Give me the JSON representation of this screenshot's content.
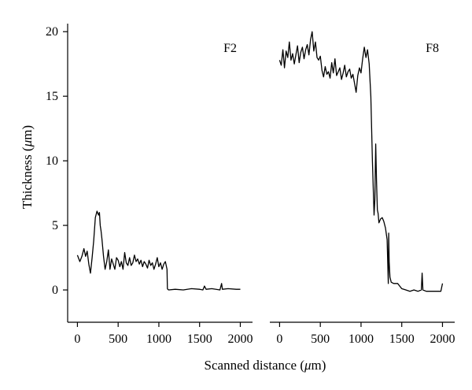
{
  "chart_data": {
    "type": "line",
    "ylabel": "Thickness (μm)",
    "xlabel": "Scanned distance (μm)",
    "ylim": [
      -2.5,
      20.5
    ],
    "yticks": [
      0,
      5,
      10,
      15,
      20
    ],
    "grid": false,
    "panels": [
      {
        "label": "F2",
        "xlim": [
          -120,
          2150
        ],
        "xticks": [
          0,
          500,
          1000,
          1500,
          2000
        ],
        "x": [
          0,
          30,
          55,
          80,
          100,
          120,
          140,
          160,
          180,
          200,
          220,
          240,
          260,
          270,
          280,
          290,
          300,
          320,
          340,
          360,
          380,
          400,
          420,
          440,
          460,
          480,
          500,
          520,
          540,
          560,
          580,
          600,
          620,
          640,
          660,
          680,
          700,
          720,
          740,
          760,
          780,
          800,
          820,
          840,
          860,
          880,
          900,
          920,
          940,
          960,
          980,
          1000,
          1020,
          1040,
          1060,
          1080,
          1100,
          1105,
          1110,
          1120,
          1200,
          1300,
          1400,
          1500,
          1540,
          1560,
          1580,
          1650,
          1750,
          1770,
          1780,
          1850,
          1950,
          2000
        ],
        "y": [
          2.7,
          2.2,
          2.6,
          3.2,
          2.6,
          3.0,
          2.0,
          1.3,
          2.5,
          3.8,
          5.6,
          6.1,
          5.8,
          6.0,
          5.0,
          4.6,
          4.0,
          2.6,
          1.6,
          2.2,
          3.1,
          1.6,
          2.4,
          2.0,
          1.6,
          2.5,
          2.3,
          1.8,
          2.2,
          1.6,
          2.9,
          2.1,
          1.9,
          2.5,
          1.9,
          2.1,
          2.7,
          2.2,
          2.4,
          2.0,
          2.3,
          1.8,
          2.2,
          2.0,
          1.7,
          2.3,
          1.9,
          2.1,
          1.6,
          2.0,
          2.5,
          1.8,
          2.1,
          1.6,
          2.0,
          2.2,
          1.6,
          0.1,
          0.05,
          0.0,
          0.05,
          0.0,
          0.1,
          0.05,
          0.0,
          0.3,
          0.05,
          0.1,
          0.0,
          0.5,
          0.05,
          0.1,
          0.05,
          0.05
        ]
      },
      {
        "label": "F8",
        "xlim": [
          -120,
          2150
        ],
        "xticks": [
          0,
          500,
          1000,
          1500,
          2000
        ],
        "x": [
          0,
          20,
          40,
          60,
          80,
          100,
          120,
          140,
          160,
          180,
          200,
          220,
          240,
          260,
          280,
          300,
          320,
          340,
          360,
          380,
          400,
          420,
          440,
          460,
          480,
          500,
          520,
          540,
          560,
          580,
          600,
          620,
          640,
          660,
          680,
          700,
          720,
          740,
          760,
          780,
          800,
          820,
          840,
          860,
          880,
          900,
          920,
          940,
          960,
          980,
          1000,
          1020,
          1040,
          1060,
          1080,
          1100,
          1120,
          1140,
          1160,
          1170,
          1180,
          1190,
          1200,
          1210,
          1220,
          1240,
          1260,
          1280,
          1300,
          1320,
          1335,
          1340,
          1345,
          1355,
          1370,
          1400,
          1450,
          1500,
          1550,
          1600,
          1650,
          1700,
          1740,
          1750,
          1760,
          1800,
          1900,
          1980,
          2000
        ],
        "y": [
          17.8,
          17.4,
          18.6,
          17.2,
          18.5,
          18.0,
          19.2,
          17.8,
          18.3,
          17.5,
          18.2,
          18.9,
          17.6,
          18.4,
          18.8,
          17.9,
          18.6,
          19.0,
          18.2,
          19.4,
          20.0,
          18.5,
          19.2,
          18.0,
          17.8,
          18.1,
          17.0,
          16.5,
          17.3,
          16.7,
          16.9,
          16.4,
          17.6,
          16.8,
          17.9,
          16.6,
          16.9,
          17.2,
          16.3,
          16.8,
          17.4,
          16.5,
          16.9,
          17.1,
          16.4,
          16.7,
          16.0,
          15.3,
          16.6,
          17.2,
          16.8,
          17.9,
          18.8,
          18.0,
          18.6,
          17.5,
          15.0,
          10.0,
          5.8,
          7.0,
          11.3,
          8.5,
          6.2,
          5.9,
          5.2,
          5.5,
          5.6,
          5.3,
          4.8,
          3.9,
          0.5,
          4.4,
          2.2,
          1.0,
          0.6,
          0.5,
          0.5,
          0.1,
          0.0,
          -0.1,
          0.0,
          -0.1,
          0.0,
          1.3,
          0.0,
          -0.1,
          -0.1,
          -0.1,
          0.5
        ]
      }
    ]
  }
}
